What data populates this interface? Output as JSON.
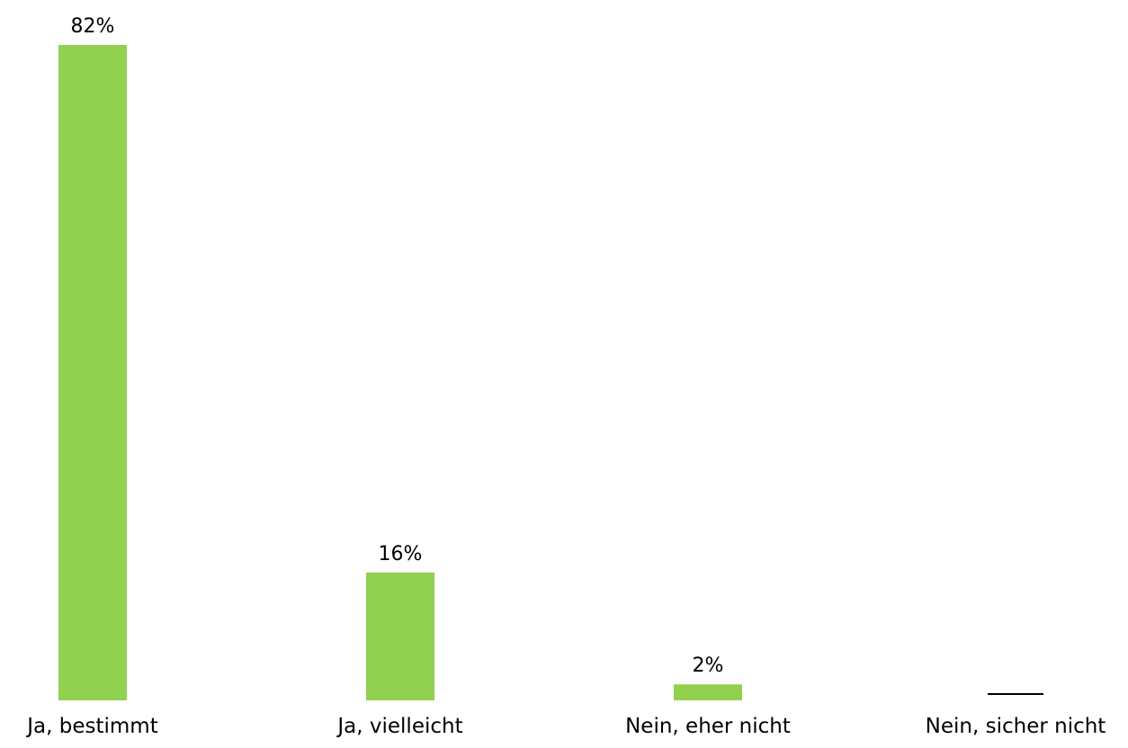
{
  "chart_data": {
    "type": "bar",
    "categories": [
      "Ja, bestimmt",
      "Ja, vielleicht",
      "Nein, eher nicht",
      "Nein, sicher nicht"
    ],
    "values": [
      82,
      16,
      2,
      0
    ],
    "data_labels": [
      "82%",
      "16%",
      "2%",
      ""
    ],
    "title": "",
    "xlabel": "",
    "ylabel": "",
    "ylim": [
      0,
      82
    ],
    "grid": false,
    "legend": "none",
    "colors": {
      "bar": "#92d050",
      "zero_marker": "#000000"
    }
  }
}
